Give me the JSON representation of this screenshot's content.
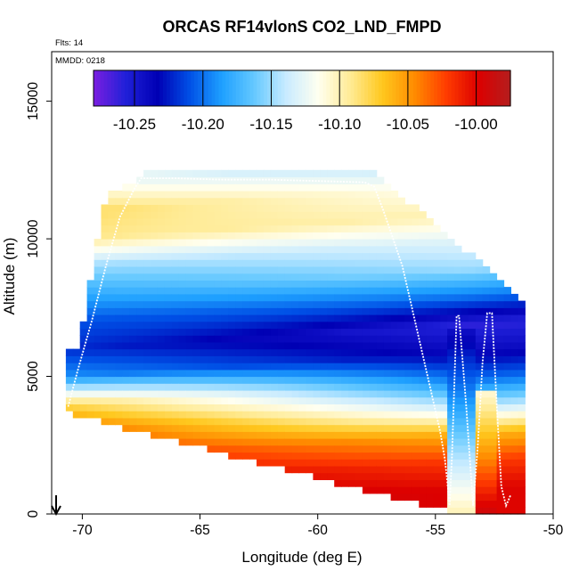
{
  "chart_data": {
    "type": "heatmap",
    "title": "ORCAS RF14vlonS CO2_LND_FMPD",
    "flights_label": "Flts: 14",
    "date_label": "MMDD: 0218",
    "xlabel": "Longitude (deg E)",
    "ylabel": "Altitude (m)",
    "xlim": [
      -71.3,
      -50
    ],
    "ylim": [
      0,
      16800
    ],
    "x_ticks": [
      -70,
      -65,
      -60,
      -55,
      -50
    ],
    "x_tick_labels": [
      "-70",
      "-65",
      "-60",
      "-55",
      "-50"
    ],
    "y_ticks": [
      0,
      5000,
      10000,
      15000
    ],
    "y_tick_labels": [
      "0",
      "5000",
      "10000",
      "15000"
    ],
    "colorbar": {
      "min": -10.28,
      "max": -9.975,
      "ticks": [
        -10.25,
        -10.2,
        -10.15,
        -10.1,
        -10.05,
        -10.0
      ],
      "tick_labels": [
        "-10.25",
        "-10.20",
        "-10.15",
        "-10.10",
        "-10.05",
        "-10.00"
      ],
      "colors": [
        "#7b1fe0",
        "#2020d8",
        "#0000b4",
        "#0050e6",
        "#1ea0ff",
        "#64c8ff",
        "#c8ebff",
        "#fffff0",
        "#ffeb96",
        "#ffc81e",
        "#ff8c00",
        "#ff3c00",
        "#dc0000",
        "#b41e1e"
      ]
    },
    "profile_field": {
      "description": "Curtain of CO2_LND_FMPD values; value is a function of altitude (km) along with longitude-dependent slant",
      "altitude_levels_km": [
        0,
        1,
        2,
        3,
        4,
        5,
        6,
        7,
        8,
        9,
        10,
        11,
        12
      ],
      "values_west": [
        -9.98,
        -9.99,
        -10.01,
        -10.03,
        -10.08,
        -10.19,
        -10.22,
        -10.21,
        -10.18,
        -10.15,
        -10.09,
        -10.08,
        -10.12
      ],
      "values_east": [
        -10.0,
        -10.02,
        -10.06,
        -10.14,
        -10.2,
        -10.24,
        -10.26,
        -10.2,
        -10.15,
        -10.13,
        -10.1,
        -10.12,
        -10.15
      ]
    },
    "flight_track": {
      "lon": [
        -70.6,
        -70.2,
        -69.6,
        -69.0,
        -68.4,
        -67.8,
        -67.5,
        -66.0,
        -64.0,
        -62.0,
        -60.0,
        -58.0,
        -57.6,
        -57.2,
        -56.8,
        -56.4,
        -56.0,
        -55.6,
        -55.2,
        -54.8,
        -54.6,
        -54.5,
        -54.4,
        -54.3,
        -54.1,
        -54.0,
        -53.7,
        -53.4,
        -53.2,
        -53.0,
        -52.8,
        -52.6,
        -52.4,
        -52.2,
        -52.0,
        -51.8
      ],
      "alt": [
        3900,
        5200,
        7000,
        9000,
        10800,
        11800,
        12200,
        12200,
        12150,
        12150,
        12100,
        12050,
        11900,
        11000,
        10000,
        9000,
        7500,
        6000,
        4500,
        3000,
        2000,
        1200,
        300,
        2000,
        7200,
        7200,
        4000,
        300,
        2500,
        5500,
        7300,
        7300,
        4000,
        1000,
        300,
        700
      ]
    }
  }
}
